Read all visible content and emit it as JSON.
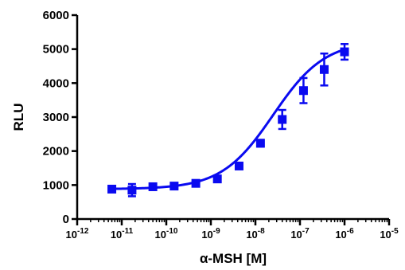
{
  "chart_data": {
    "type": "scatter",
    "xlabel": "α-MSH [M]",
    "ylabel": "RLU",
    "xscale": "log",
    "xlim": [
      1e-12,
      1e-05
    ],
    "ylim": [
      0,
      6000
    ],
    "yticks": [
      0,
      1000,
      2000,
      3000,
      4000,
      5000,
      6000
    ],
    "xtick_labels": [
      {
        "base": "10",
        "exp": "-12"
      },
      {
        "base": "10",
        "exp": "-11"
      },
      {
        "base": "10",
        "exp": "-10"
      },
      {
        "base": "10",
        "exp": "-9"
      },
      {
        "base": "10",
        "exp": "-8"
      },
      {
        "base": "10",
        "exp": "-7"
      },
      {
        "base": "10",
        "exp": "-6"
      },
      {
        "base": "10",
        "exp": "-5"
      }
    ],
    "grid": false,
    "legend": "none",
    "color": "#0a0af0",
    "points": [
      {
        "x": 6e-12,
        "y": 880,
        "err": 60
      },
      {
        "x": 1.7e-11,
        "y": 850,
        "err": 180
      },
      {
        "x": 5e-11,
        "y": 950,
        "err": 60
      },
      {
        "x": 1.5e-10,
        "y": 970,
        "err": 60
      },
      {
        "x": 4.6e-10,
        "y": 1050,
        "err": 60
      },
      {
        "x": 1.4e-09,
        "y": 1180,
        "err": 80
      },
      {
        "x": 4.3e-09,
        "y": 1560,
        "err": 80
      },
      {
        "x": 1.3e-08,
        "y": 2230,
        "err": 100
      },
      {
        "x": 4e-08,
        "y": 2930,
        "err": 280
      },
      {
        "x": 1.2e-07,
        "y": 3780,
        "err": 370
      },
      {
        "x": 3.5e-07,
        "y": 4400,
        "err": 470
      },
      {
        "x": 1e-06,
        "y": 4920,
        "err": 230
      }
    ],
    "fit": {
      "bottom": 880,
      "top": 5250,
      "log_ec50": -7.6,
      "hill": 0.75
    }
  }
}
